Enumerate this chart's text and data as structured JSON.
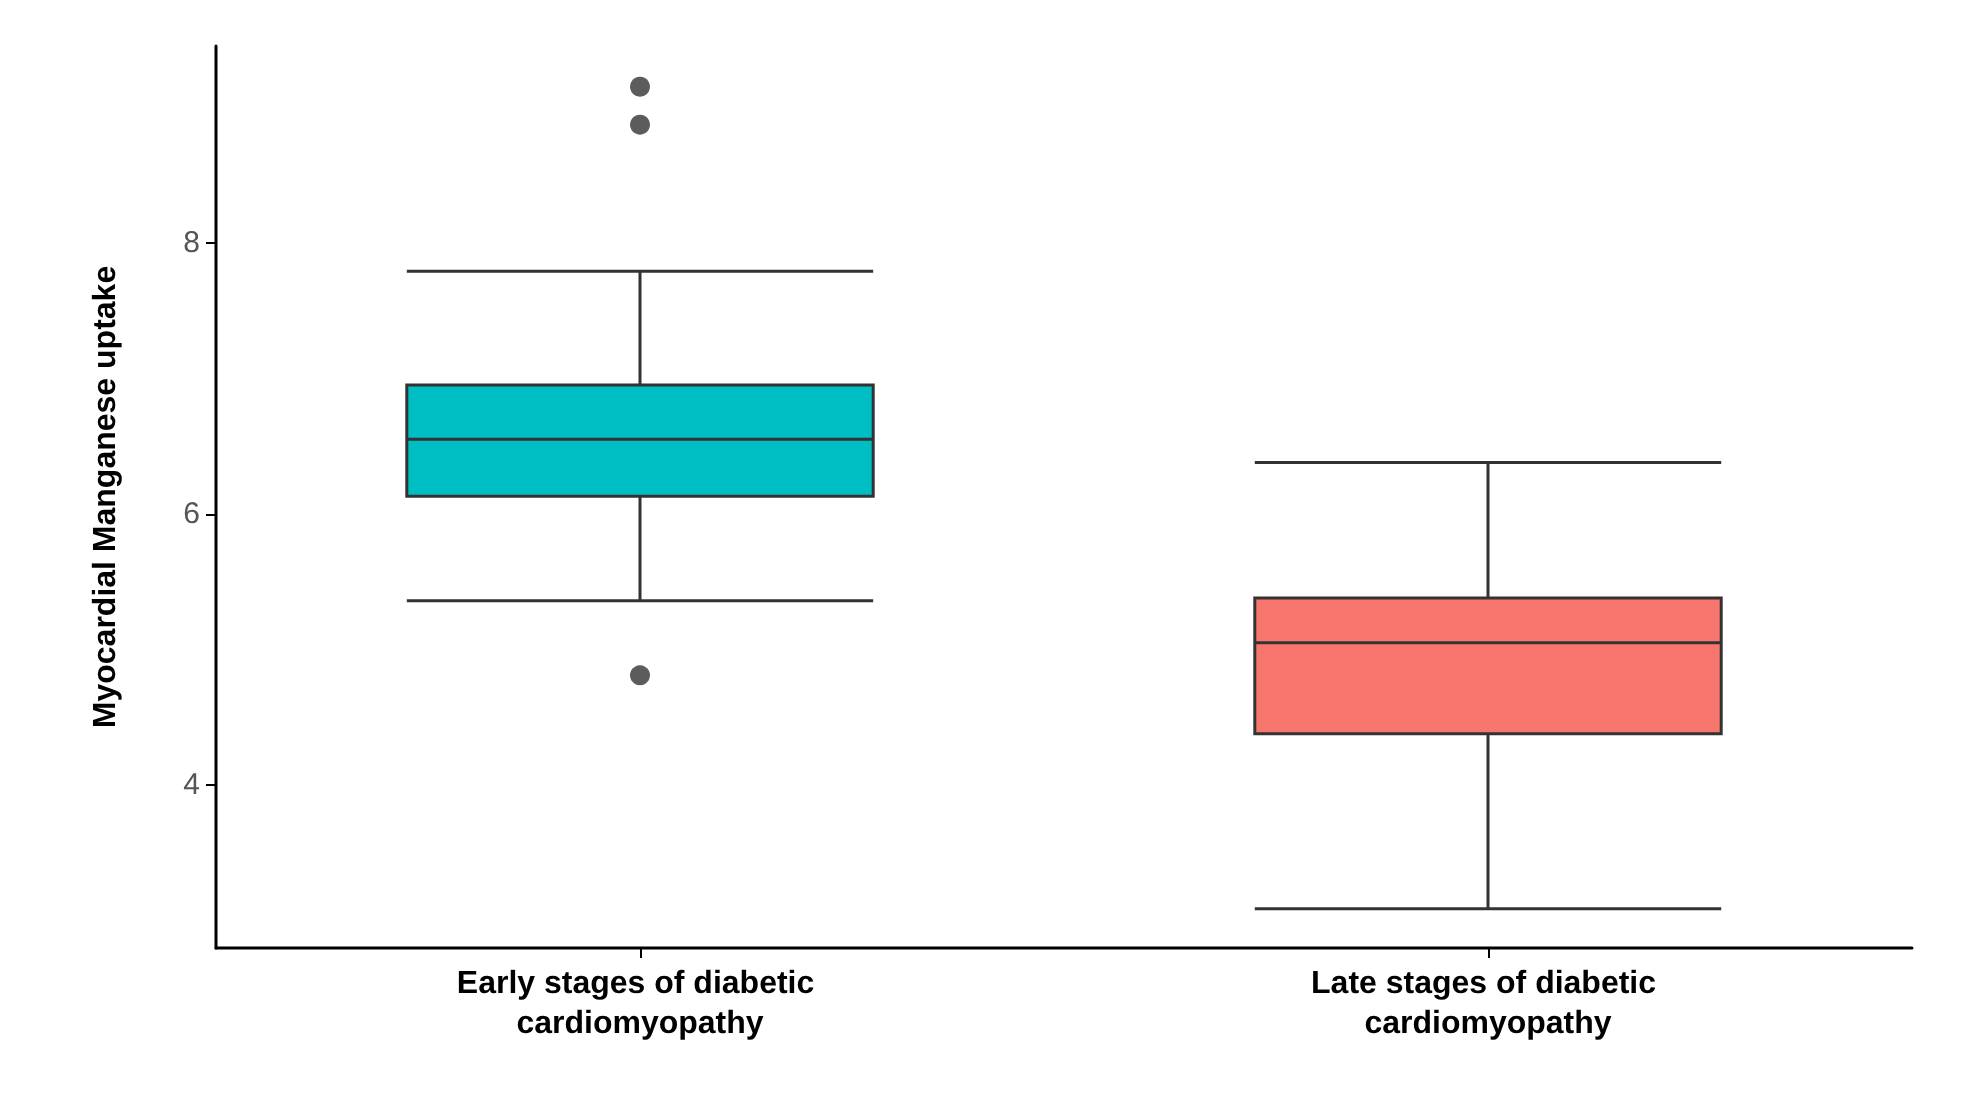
{
  "chart_data": {
    "type": "box",
    "ylabel": "Myocardial Manganese uptake",
    "categories": [
      "Early stages of diabetic cardiomyopathy",
      "Late stages of diabetic cardiomyopathy"
    ],
    "boxes": [
      {
        "low": 5.36,
        "q1": 6.13,
        "median": 6.55,
        "q3": 6.95,
        "high": 7.79,
        "outliers": [
          9.15,
          8.87,
          4.81
        ]
      },
      {
        "low": 3.09,
        "q1": 4.38,
        "median": 5.05,
        "q3": 5.38,
        "high": 6.38
      }
    ],
    "colors": [
      "#00bfc4",
      "#f8766d"
    ],
    "ylim": [
      2.8,
      9.45
    ],
    "yticks": [
      4,
      6,
      8
    ],
    "grid": false
  }
}
